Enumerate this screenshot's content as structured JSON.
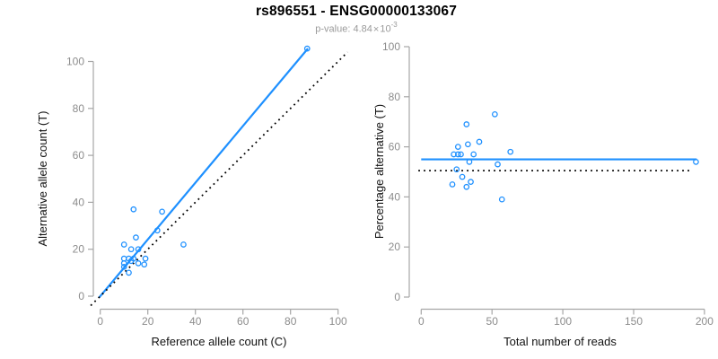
{
  "header": {
    "title": "rs896551 - ENSG00000133067",
    "p_label": "p-value: ",
    "p_value": "4.84",
    "p_times": "×",
    "p_base": "10",
    "p_exponent": "-3"
  },
  "colors": {
    "accent_blue": "#1E90FF",
    "identity_line": "#000000",
    "axis_line": "#a6a6a6",
    "tick_label": "#8c8c8c",
    "axis_title": "#111111",
    "subtitle": "#9a9a9a"
  },
  "chart_data": [
    {
      "id": "allele-counts-scatter",
      "type": "scatter",
      "title": "",
      "xlabel": "Reference allele count (C)",
      "ylabel": "Alternative allele count (T)",
      "xlim": [
        0,
        100
      ],
      "ylim": [
        0,
        100
      ],
      "xticks": [
        0,
        20,
        40,
        60,
        80,
        100
      ],
      "yticks": [
        0,
        20,
        40,
        60,
        80,
        100
      ],
      "grid": false,
      "legend": "none",
      "points": [
        [
          14,
          37
        ],
        [
          26,
          36
        ],
        [
          24,
          28
        ],
        [
          15,
          25
        ],
        [
          10,
          22
        ],
        [
          13,
          20
        ],
        [
          16,
          20
        ],
        [
          35,
          22
        ],
        [
          19,
          16
        ],
        [
          14,
          16
        ],
        [
          12,
          16
        ],
        [
          10,
          16
        ],
        [
          13,
          15
        ],
        [
          16,
          14
        ],
        [
          10,
          14
        ],
        [
          10,
          12.5
        ],
        [
          18.5,
          13.5
        ],
        [
          12,
          10
        ],
        [
          87,
          105.5
        ]
      ],
      "lines": [
        {
          "name": "fit",
          "style": "solid",
          "color": "#1E90FF",
          "from": [
            -0.5,
            -0.6
          ],
          "to": [
            87.3,
            105.5
          ]
        },
        {
          "name": "identity",
          "style": "dotted",
          "color": "#000000",
          "from": [
            -4,
            -4
          ],
          "to": [
            104,
            104
          ]
        }
      ]
    },
    {
      "id": "percentage-scatter",
      "type": "scatter",
      "title": "",
      "xlabel": "Total number of reads",
      "ylabel": "Percentage alternative (T)",
      "xlim": [
        0,
        200
      ],
      "ylim": [
        0,
        100
      ],
      "xticks": [
        0,
        50,
        100,
        150,
        200
      ],
      "yticks": [
        0,
        20,
        40,
        60,
        80,
        100
      ],
      "grid": false,
      "legend": "none",
      "points": [
        [
          52,
          73
        ],
        [
          32,
          69
        ],
        [
          41,
          62
        ],
        [
          33,
          61
        ],
        [
          26,
          60
        ],
        [
          63,
          58
        ],
        [
          23,
          57
        ],
        [
          26,
          57
        ],
        [
          28,
          57
        ],
        [
          37,
          57
        ],
        [
          34,
          54
        ],
        [
          54,
          53
        ],
        [
          25,
          51
        ],
        [
          29,
          48
        ],
        [
          35,
          46
        ],
        [
          22,
          45
        ],
        [
          32,
          44
        ],
        [
          57,
          39
        ],
        [
          194,
          54
        ]
      ],
      "lines": [
        {
          "name": "mean-percentage",
          "style": "solid",
          "color": "#1E90FF",
          "from": [
            0,
            55
          ],
          "to": [
            194.5,
            55
          ]
        },
        {
          "name": "null-50",
          "style": "dotted",
          "color": "#000000",
          "from": [
            -2,
            50.5
          ],
          "to": [
            190,
            50.5
          ]
        }
      ]
    }
  ]
}
